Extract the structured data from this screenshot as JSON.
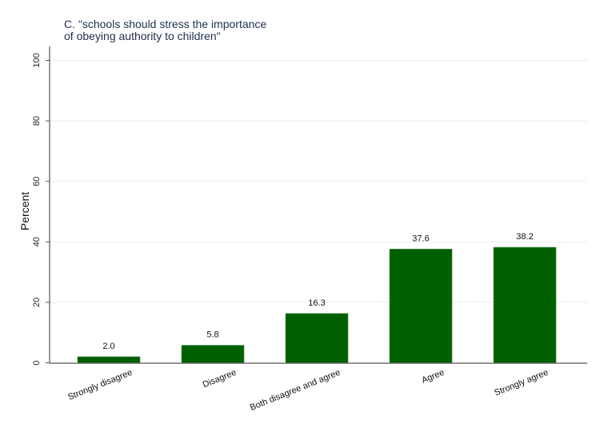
{
  "chart_data": {
    "type": "bar",
    "title": [
      "C. \"schools should stress the importance",
      "of obeying authority to children\""
    ],
    "xlabel": "",
    "ylabel": "Percent",
    "categories": [
      "Strongly disagree",
      "Disagree",
      "Both disagree and agree",
      "Agree",
      "Strongly agree"
    ],
    "values": [
      2.0,
      5.8,
      16.3,
      37.6,
      38.2
    ],
    "data_labels": [
      "2.0",
      "5.8",
      "16.3",
      "37.6",
      "38.2"
    ],
    "ylim": [
      0,
      100
    ],
    "yticks": [
      "0",
      "20",
      "40",
      "60",
      "80",
      "100"
    ],
    "grid": true,
    "bar_color": "#006000",
    "grid_color": "#eaf0f0"
  }
}
